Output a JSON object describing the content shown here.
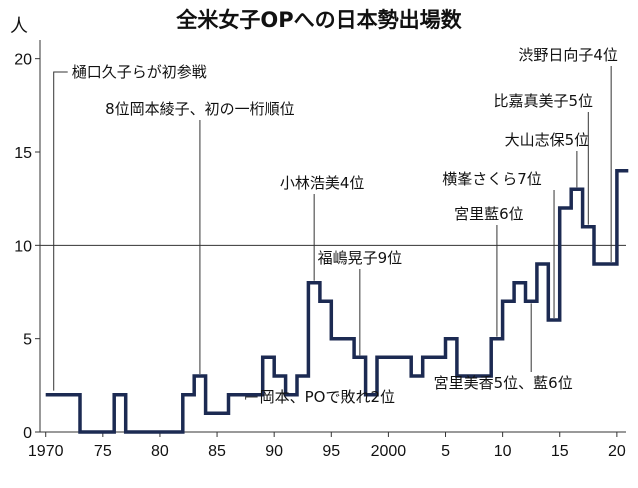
{
  "chart_data": {
    "type": "line",
    "title": "全米女子OPへの日本勢出場数",
    "ylabel": "人",
    "ylim": [
      0,
      21
    ],
    "yticks": [
      0,
      5,
      10,
      15,
      20
    ],
    "xlim": [
      1969.5,
      2020.8
    ],
    "xticks": [
      {
        "x": 1970,
        "label": "1970"
      },
      {
        "x": 1975,
        "label": "75"
      },
      {
        "x": 1980,
        "label": "80"
      },
      {
        "x": 1985,
        "label": "85"
      },
      {
        "x": 1990,
        "label": "90"
      },
      {
        "x": 1995,
        "label": "95"
      },
      {
        "x": 2000,
        "label": "2000"
      },
      {
        "x": 2005,
        "label": "5"
      },
      {
        "x": 2010,
        "label": "10"
      },
      {
        "x": 2015,
        "label": "15"
      },
      {
        "x": 2020,
        "label": "20"
      }
    ],
    "gridlines": [
      10
    ],
    "line_color": "#1c2a52",
    "series": [
      {
        "x": [
          1970,
          1971,
          1972,
          1973,
          1974,
          1975,
          1976,
          1977,
          1978,
          1979,
          1980,
          1981,
          1982,
          1983,
          1984,
          1985,
          1986,
          1987,
          1988,
          1989,
          1990,
          1991,
          1992,
          1993,
          1994,
          1995,
          1996,
          1997,
          1998,
          1999,
          2000,
          2001,
          2002,
          2003,
          2004,
          2005,
          2006,
          2007,
          2008,
          2009,
          2010,
          2011,
          2012,
          2013,
          2014,
          2015,
          2016,
          2017,
          2018,
          2019,
          2020
        ],
        "values": [
          2,
          2,
          2,
          0,
          0,
          0,
          2,
          0,
          0,
          0,
          0,
          0,
          2,
          3,
          1,
          1,
          2,
          2,
          2,
          4,
          3,
          2,
          3,
          8,
          7,
          5,
          5,
          4,
          2,
          4,
          4,
          4,
          3,
          4,
          4,
          5,
          3,
          3,
          3,
          5,
          7,
          8,
          7,
          9,
          6,
          12,
          13,
          11,
          9,
          9,
          14
        ]
      }
    ],
    "annotations": [
      {
        "text": "樋口久子らが初参戦",
        "x": 1970
      },
      {
        "text": "8位岡本綾子、初の一桁順位",
        "x": 1983
      },
      {
        "text": "岡本、POで敗れ2位",
        "x": 1987
      },
      {
        "text": "小林浩美4位",
        "x": 1993
      },
      {
        "text": "福嶋晃子9位",
        "x": 1997
      },
      {
        "text": "宮里藍6位",
        "x": 2009
      },
      {
        "text": "宮里美香5位、藍6位",
        "x": 2012
      },
      {
        "text": "横峯さくら7位",
        "x": 2014
      },
      {
        "text": "大山志保5位",
        "x": 2016
      },
      {
        "text": "比嘉真美子5位",
        "x": 2017
      },
      {
        "text": "渋野日向子4位",
        "x": 2019
      }
    ]
  }
}
